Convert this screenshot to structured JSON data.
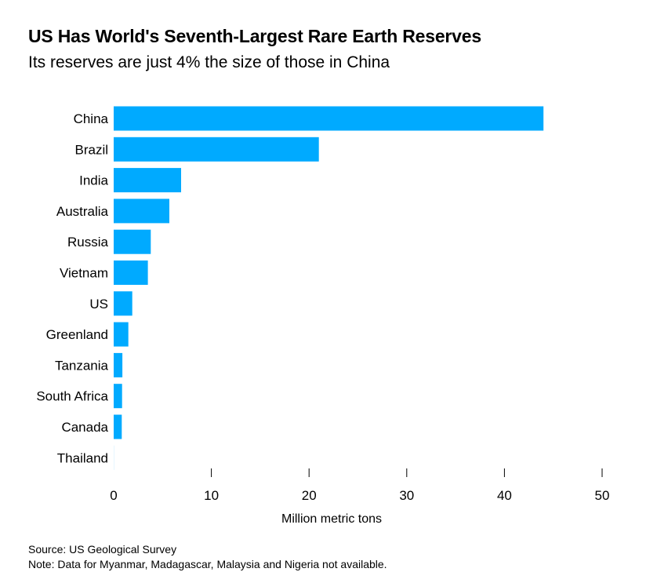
{
  "chart_data": {
    "type": "bar",
    "orientation": "horizontal",
    "title": "US Has World's Seventh-Largest Rare Earth Reserves",
    "subtitle": "Its reserves are just 4% the size of those in China",
    "categories": [
      "China",
      "Brazil",
      "India",
      "Australia",
      "Russia",
      "Vietnam",
      "US",
      "Greenland",
      "Tanzania",
      "South Africa",
      "Canada",
      "Thailand"
    ],
    "values": [
      44,
      21,
      6.9,
      5.7,
      3.8,
      3.5,
      1.9,
      1.5,
      0.89,
      0.86,
      0.83,
      0.0045
    ],
    "xlabel": "Million metric tons",
    "ylabel": "",
    "xlim": [
      0,
      50
    ],
    "xticks": [
      0,
      10,
      20,
      30,
      40,
      50
    ],
    "grid": false,
    "bar_color": "#00aaff",
    "tick_color": "#000000"
  },
  "footer": {
    "source": "Source: US Geological Survey",
    "note": "Note: Data for Myanmar, Madagascar, Malaysia and Nigeria not available."
  }
}
